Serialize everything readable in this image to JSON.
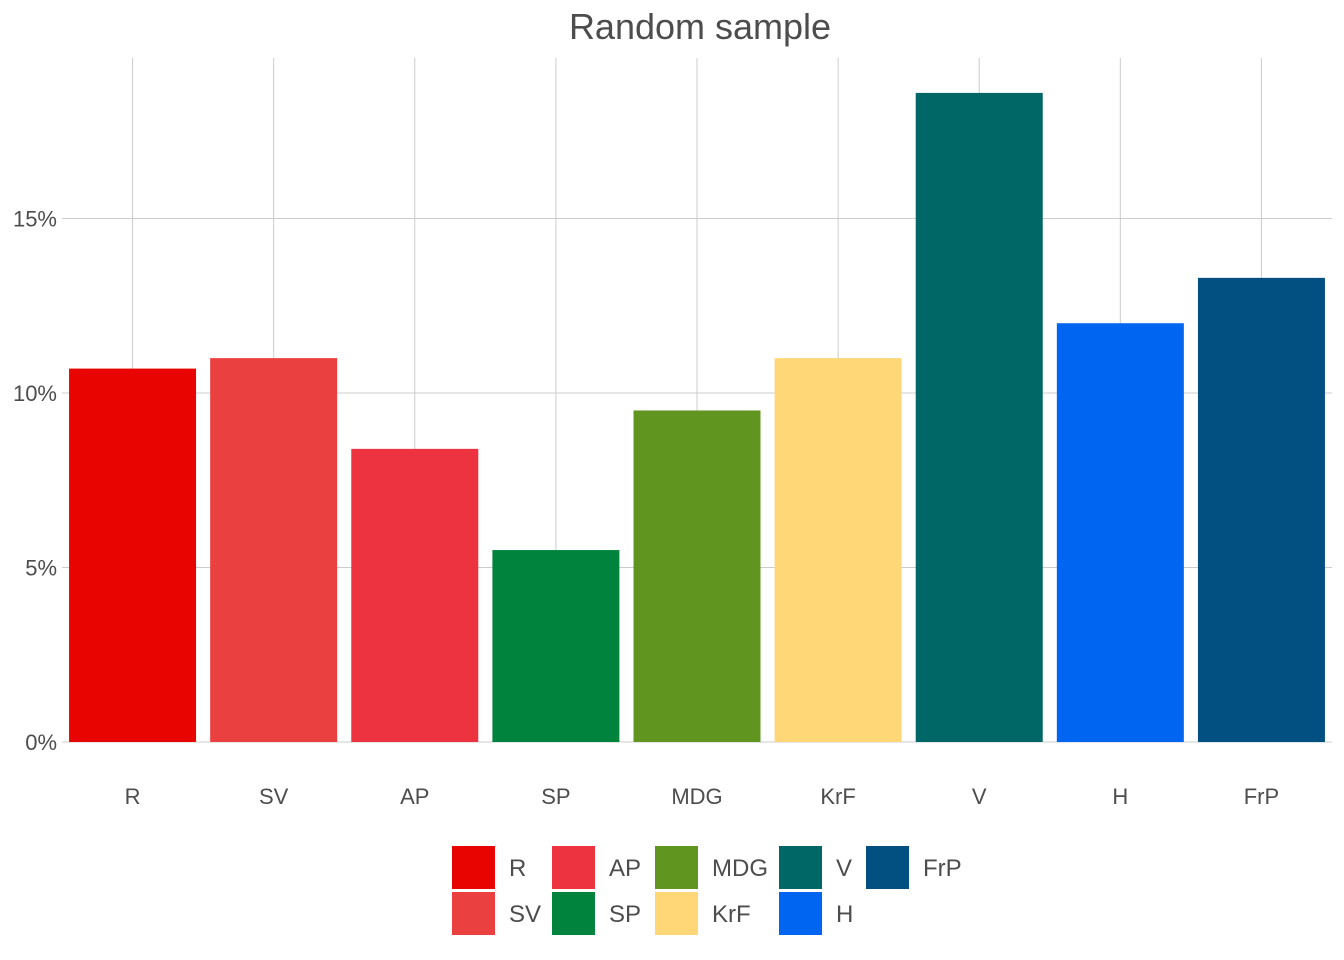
{
  "chart_data": {
    "type": "bar",
    "title": "Random sample",
    "xlabel": "",
    "ylabel": "",
    "categories": [
      "R",
      "SV",
      "AP",
      "SP",
      "MDG",
      "KrF",
      "V",
      "H",
      "FrP"
    ],
    "values": [
      10.7,
      11.0,
      8.4,
      5.5,
      9.5,
      11.0,
      18.6,
      12.0,
      13.3
    ],
    "colors": [
      "#e80501",
      "#eb4040",
      "#ee3340",
      "#00843d",
      "#60961f",
      "#ffd777",
      "#006666",
      "#0065f1",
      "#024f82"
    ],
    "yticks": [
      0,
      5,
      10,
      15
    ],
    "ytick_labels": [
      "0%",
      "5%",
      "10%",
      "15%"
    ],
    "ylim": [
      0,
      19.6
    ],
    "grid": true,
    "legend": {
      "position": "bottom",
      "entries": [
        "R",
        "SV",
        "AP",
        "SP",
        "MDG",
        "KrF",
        "V",
        "H",
        "FrP"
      ]
    }
  }
}
